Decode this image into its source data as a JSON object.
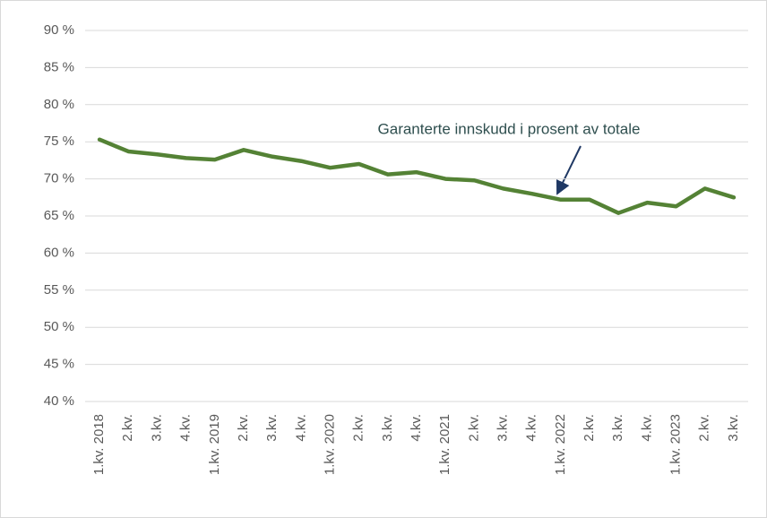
{
  "chart_data": {
    "type": "line",
    "annotation": "Garanterte innskudd i prosent av totale",
    "categories": [
      "1.kv. 2018",
      "2.kv.",
      "3.kv.",
      "4.kv.",
      "1.kv. 2019",
      "2.kv.",
      "3.kv.",
      "4.kv.",
      "1.kv. 2020",
      "2.kv.",
      "3.kv.",
      "4.kv.",
      "1.kv. 2021",
      "2.kv.",
      "3.kv.",
      "4.kv.",
      "1.kv. 2022",
      "2.kv.",
      "3.kv.",
      "4.kv.",
      "1.kv. 2023",
      "2.kv.",
      "3.kv."
    ],
    "series": [
      {
        "color": "#548235",
        "values": [
          75.3,
          73.7,
          73.3,
          72.8,
          72.6,
          73.9,
          73.0,
          72.4,
          71.5,
          72.0,
          70.6,
          70.9,
          70.0,
          69.8,
          68.7,
          68.0,
          67.2,
          67.2,
          65.4,
          66.8,
          66.3,
          68.7,
          67.5
        ]
      }
    ],
    "ylim": [
      40,
      90
    ],
    "yticks": [
      {
        "value": 40,
        "label": "40 %"
      },
      {
        "value": 45,
        "label": "45 %"
      },
      {
        "value": 50,
        "label": "50 %"
      },
      {
        "value": 55,
        "label": "55 %"
      },
      {
        "value": 60,
        "label": "60 %"
      },
      {
        "value": 65,
        "label": "65 %"
      },
      {
        "value": 70,
        "label": "70 %"
      },
      {
        "value": 75,
        "label": "75 %"
      },
      {
        "value": 80,
        "label": "80 %"
      },
      {
        "value": 85,
        "label": "85 %"
      },
      {
        "value": 90,
        "label": "90 %"
      }
    ],
    "grid": true
  }
}
